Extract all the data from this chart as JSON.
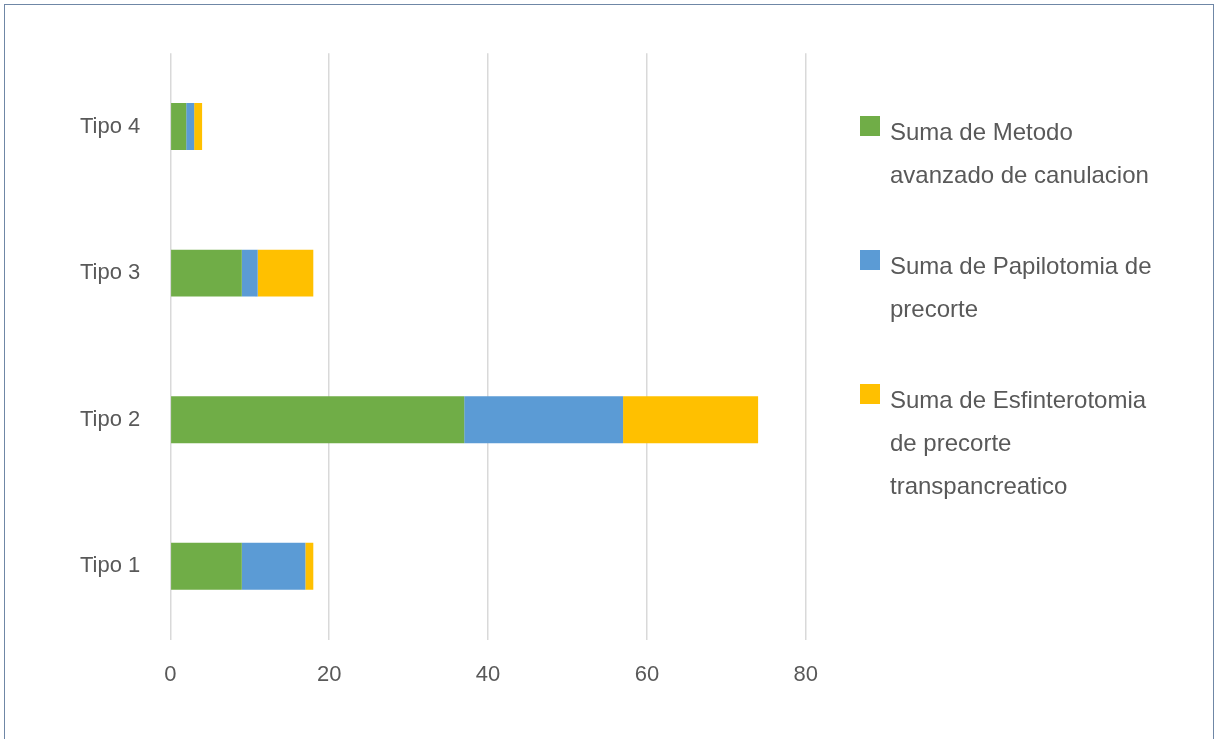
{
  "chart_data": {
    "type": "bar",
    "orientation": "horizontal",
    "stacked": true,
    "categories": [
      "Tipo 4",
      "Tipo 3",
      "Tipo 2",
      "Tipo 1"
    ],
    "series": [
      {
        "name": "Suma de Metodo avanzado de canulacion",
        "color": "#70ad47",
        "values": [
          2,
          9,
          37,
          9
        ]
      },
      {
        "name": "Suma de Papilotomia de precorte",
        "color": "#5b9bd5",
        "values": [
          1,
          2,
          20,
          8
        ]
      },
      {
        "name": "Suma de Esfinterotomia de precorte transpancreatico",
        "color": "#ffc000",
        "values": [
          1,
          7,
          17,
          1
        ]
      }
    ],
    "xlim": [
      0,
      80
    ],
    "xticks": [
      0,
      20,
      40,
      60,
      80
    ],
    "grid": "x",
    "legend": "right"
  }
}
